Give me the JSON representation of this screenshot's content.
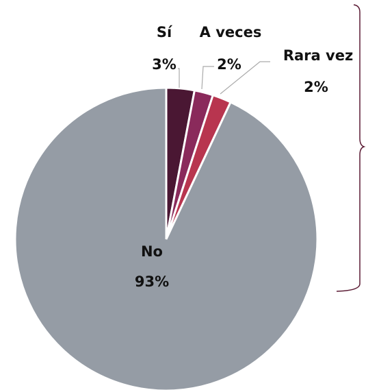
{
  "chart_data": {
    "type": "pie",
    "categories": [
      "Sí",
      "A veces",
      "Rara vez",
      "No"
    ],
    "values": [
      3,
      2,
      2,
      93
    ],
    "value_labels": [
      "3%",
      "2%",
      "2%",
      "93%"
    ],
    "colors": [
      "#4a1733",
      "#8a2a5b",
      "#b8354f",
      "#959ca5"
    ]
  }
}
